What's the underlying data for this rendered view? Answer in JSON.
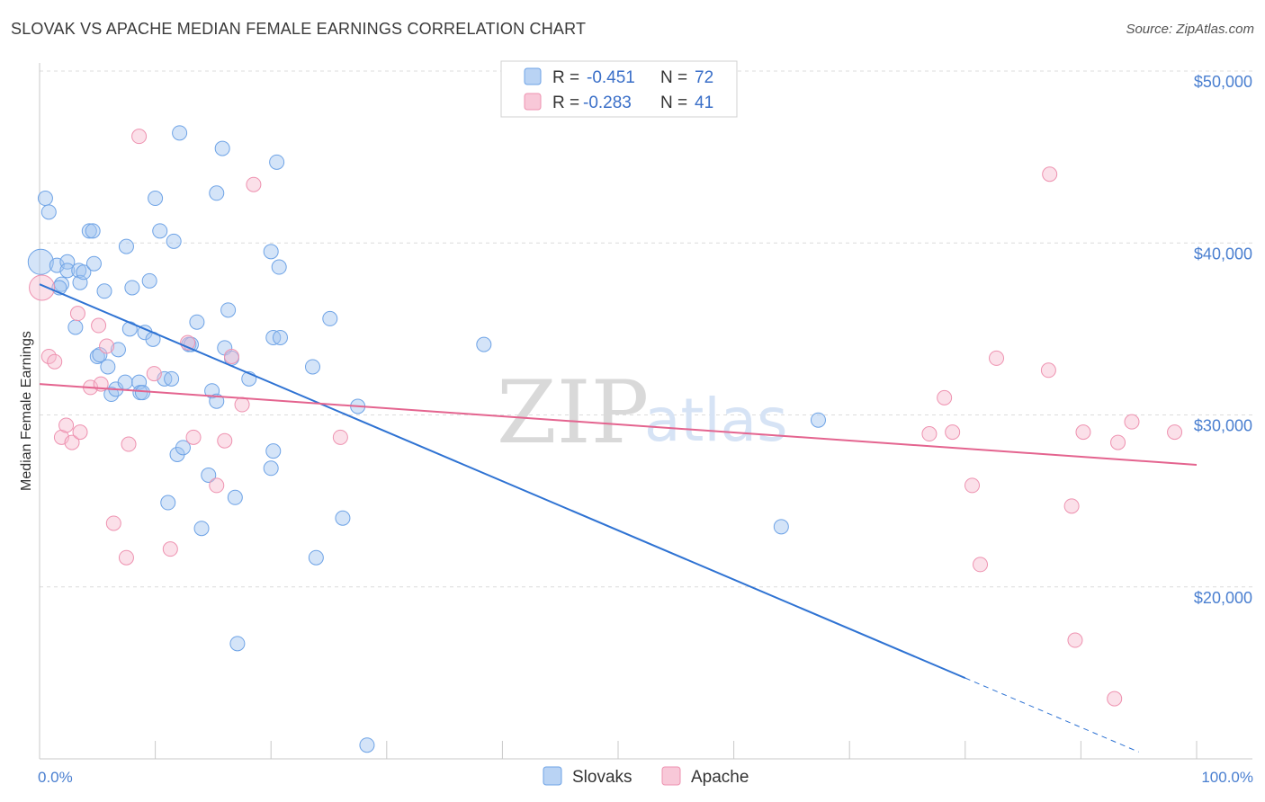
{
  "title": "SLOVAK VS APACHE MEDIAN FEMALE EARNINGS CORRELATION CHART",
  "source": "Source: ZipAtlas.com",
  "watermark": {
    "zip": "ZIP",
    "atlas": "atlas"
  },
  "colors": {
    "slovak": "#6ea3e6",
    "apache": "#ee92b0",
    "slovak_line": "#2f73d3",
    "apache_line": "#e4648f",
    "grid": "#dcdcdc",
    "tick_text": "#4a7fd0"
  },
  "legend": {
    "slovak": {
      "r_label": "R = ",
      "r_value": "-0.451",
      "n_label": "N = ",
      "n_value": "72"
    },
    "apache": {
      "r_label": "R = ",
      "r_value": "-0.283",
      "n_label": "N = ",
      "n_value": "41"
    }
  },
  "chart_data": {
    "type": "scatter",
    "title": "SLOVAK VS APACHE MEDIAN FEMALE EARNINGS CORRELATION CHART",
    "xlabel": "",
    "ylabel": "Median Female Earnings",
    "xlim": [
      0,
      100
    ],
    "ylim": [
      9000,
      51000
    ],
    "x_tick_labels": [
      "0.0%",
      "100.0%"
    ],
    "y_ticks": [
      20000,
      30000,
      40000,
      50000
    ],
    "y_tick_labels": [
      "$20,000",
      "$30,000",
      "$40,000",
      "$50,000"
    ],
    "grid": true,
    "legend_position": "top-center",
    "series": [
      {
        "name": "Slovaks",
        "r": -0.451,
        "n": 72,
        "trend": {
          "x": [
            0,
            80
          ],
          "y": [
            37600,
            14700
          ],
          "dashed_extension_to": [
            95,
            10400
          ]
        },
        "points": [
          [
            0.1,
            38900
          ],
          [
            0.5,
            42600
          ],
          [
            0.8,
            41800
          ],
          [
            1.5,
            38700
          ],
          [
            1.9,
            37600
          ],
          [
            1.7,
            37400
          ],
          [
            2.4,
            38900
          ],
          [
            2.4,
            38400
          ],
          [
            3.1,
            35100
          ],
          [
            3.4,
            38400
          ],
          [
            3.5,
            37700
          ],
          [
            3.8,
            38300
          ],
          [
            4.3,
            40700
          ],
          [
            4.6,
            40700
          ],
          [
            4.7,
            38800
          ],
          [
            5.0,
            33400
          ],
          [
            5.2,
            33500
          ],
          [
            5.6,
            37200
          ],
          [
            5.9,
            32800
          ],
          [
            6.2,
            31200
          ],
          [
            6.6,
            31500
          ],
          [
            6.8,
            33800
          ],
          [
            7.4,
            31900
          ],
          [
            7.5,
            39800
          ],
          [
            7.8,
            35000
          ],
          [
            8.0,
            37400
          ],
          [
            8.6,
            31900
          ],
          [
            8.7,
            31300
          ],
          [
            8.9,
            31300
          ],
          [
            9.1,
            34800
          ],
          [
            9.5,
            37800
          ],
          [
            9.8,
            34400
          ],
          [
            10.0,
            42600
          ],
          [
            10.4,
            40700
          ],
          [
            10.8,
            32100
          ],
          [
            11.1,
            24900
          ],
          [
            11.4,
            32100
          ],
          [
            11.6,
            40100
          ],
          [
            11.9,
            27700
          ],
          [
            12.1,
            46400
          ],
          [
            12.4,
            28100
          ],
          [
            12.9,
            34100
          ],
          [
            13.1,
            34100
          ],
          [
            13.6,
            35400
          ],
          [
            14.0,
            23400
          ],
          [
            14.6,
            26500
          ],
          [
            14.9,
            31400
          ],
          [
            15.3,
            42900
          ],
          [
            15.3,
            30800
          ],
          [
            15.8,
            45500
          ],
          [
            16.0,
            33900
          ],
          [
            16.3,
            36100
          ],
          [
            16.6,
            33300
          ],
          [
            16.9,
            25200
          ],
          [
            17.1,
            16700
          ],
          [
            18.1,
            32100
          ],
          [
            20.0,
            39500
          ],
          [
            20.2,
            34500
          ],
          [
            20.7,
            38600
          ],
          [
            20.8,
            34500
          ],
          [
            20.2,
            27900
          ],
          [
            20.5,
            44700
          ],
          [
            20.0,
            26900
          ],
          [
            23.6,
            32800
          ],
          [
            23.9,
            21700
          ],
          [
            25.1,
            35600
          ],
          [
            26.2,
            24000
          ],
          [
            27.5,
            30500
          ],
          [
            28.3,
            10800
          ],
          [
            38.4,
            34100
          ],
          [
            64.1,
            23500
          ],
          [
            67.3,
            29700
          ]
        ]
      },
      {
        "name": "Apache",
        "r": -0.283,
        "n": 41,
        "trend": {
          "x": [
            0,
            100
          ],
          "y": [
            31800,
            27100
          ]
        },
        "points": [
          [
            0.2,
            37400
          ],
          [
            0.8,
            33400
          ],
          [
            1.3,
            33100
          ],
          [
            1.9,
            28700
          ],
          [
            2.3,
            29400
          ],
          [
            2.8,
            28400
          ],
          [
            3.5,
            29000
          ],
          [
            3.3,
            35900
          ],
          [
            4.4,
            31600
          ],
          [
            5.1,
            35200
          ],
          [
            5.3,
            31800
          ],
          [
            5.8,
            34000
          ],
          [
            6.4,
            23700
          ],
          [
            7.5,
            21700
          ],
          [
            7.7,
            28300
          ],
          [
            8.6,
            46200
          ],
          [
            9.9,
            32400
          ],
          [
            11.3,
            22200
          ],
          [
            12.8,
            34200
          ],
          [
            13.3,
            28700
          ],
          [
            15.3,
            25900
          ],
          [
            16.0,
            28500
          ],
          [
            16.6,
            33400
          ],
          [
            17.5,
            30600
          ],
          [
            18.5,
            43400
          ],
          [
            26.0,
            28700
          ],
          [
            76.9,
            28900
          ],
          [
            78.2,
            31000
          ],
          [
            78.9,
            29000
          ],
          [
            80.6,
            25900
          ],
          [
            81.3,
            21300
          ],
          [
            82.7,
            33300
          ],
          [
            87.2,
            32600
          ],
          [
            87.3,
            44000
          ],
          [
            89.2,
            24700
          ],
          [
            89.5,
            16900
          ],
          [
            90.2,
            29000
          ],
          [
            92.9,
            13500
          ],
          [
            93.2,
            28400
          ],
          [
            94.4,
            29600
          ],
          [
            98.1,
            29000
          ]
        ]
      }
    ]
  },
  "bottom_legend": {
    "slovaks": "Slovaks",
    "apache": "Apache"
  }
}
